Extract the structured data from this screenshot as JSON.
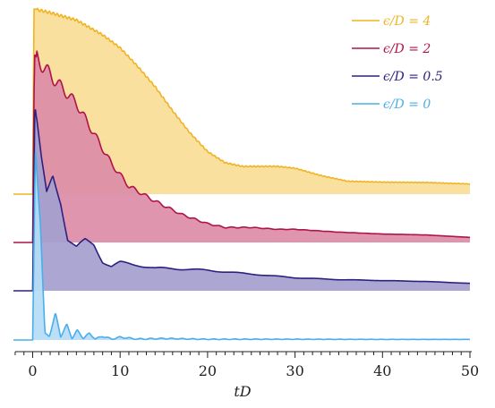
{
  "chart_data": {
    "type": "area",
    "xlabel": "tD",
    "xlim": [
      -2,
      50
    ],
    "x_ticks": [
      "0",
      "10",
      "20",
      "30",
      "40",
      "50"
    ],
    "legend_position": "top-right",
    "series": [
      {
        "key": "eps4",
        "name": "ϵ/D = 4",
        "color": "#f0b323",
        "fill": "#f9dd97",
        "baseline": 0,
        "peak": 1.0,
        "points": [
          [
            0,
            0
          ],
          [
            0.15,
            1.0
          ],
          [
            2,
            0.98
          ],
          [
            5,
            0.94
          ],
          [
            8,
            0.86
          ],
          [
            10,
            0.79
          ],
          [
            12,
            0.69
          ],
          [
            14,
            0.58
          ],
          [
            16,
            0.45
          ],
          [
            18,
            0.33
          ],
          [
            20,
            0.23
          ],
          [
            22,
            0.17
          ],
          [
            24,
            0.15
          ],
          [
            26,
            0.15
          ],
          [
            28,
            0.15
          ],
          [
            30,
            0.14
          ],
          [
            33,
            0.1
          ],
          [
            36,
            0.07
          ],
          [
            40,
            0.065
          ],
          [
            45,
            0.063
          ],
          [
            50,
            0.055
          ]
        ],
        "oscillation": {
          "amplitude": 0.008,
          "period": 0.45,
          "decay": 25
        }
      },
      {
        "key": "eps2",
        "name": "ϵ/D = 2",
        "color": "#b0124a",
        "fill": "#dc8ca6",
        "baseline": 0,
        "peak": 1.0,
        "points": [
          [
            0,
            0
          ],
          [
            0.2,
            1.0
          ],
          [
            1.5,
            0.92
          ],
          [
            3,
            0.84
          ],
          [
            5,
            0.74
          ],
          [
            7,
            0.58
          ],
          [
            9,
            0.42
          ],
          [
            11,
            0.3
          ],
          [
            14,
            0.22
          ],
          [
            17,
            0.15
          ],
          [
            20,
            0.1
          ],
          [
            22,
            0.08
          ],
          [
            25,
            0.08
          ],
          [
            28,
            0.07
          ],
          [
            30,
            0.07
          ],
          [
            35,
            0.055
          ],
          [
            40,
            0.045
          ],
          [
            45,
            0.04
          ],
          [
            50,
            0.027
          ]
        ],
        "oscillation": {
          "amplitude": 0.045,
          "period": 1.4,
          "decay": 8
        }
      },
      {
        "key": "eps05",
        "name": "ϵ/D = 0.5",
        "color": "#2d2080",
        "fill": "#a49fce",
        "baseline": 0,
        "peak": 1.0,
        "points": [
          [
            0,
            0
          ],
          [
            0.25,
            1.0
          ],
          [
            1,
            0.7
          ],
          [
            1.6,
            0.52
          ],
          [
            2.3,
            0.62
          ],
          [
            3.2,
            0.48
          ],
          [
            4,
            0.28
          ],
          [
            5,
            0.23
          ],
          [
            6,
            0.27
          ],
          [
            7,
            0.25
          ],
          [
            8,
            0.16
          ],
          [
            9,
            0.13
          ],
          [
            10,
            0.15
          ],
          [
            12,
            0.14
          ],
          [
            14,
            0.12
          ],
          [
            16,
            0.12
          ],
          [
            20,
            0.11
          ],
          [
            25,
            0.09
          ],
          [
            30,
            0.07
          ],
          [
            35,
            0.06
          ],
          [
            40,
            0.055
          ],
          [
            45,
            0.05
          ],
          [
            50,
            0.04
          ]
        ],
        "oscillation": {
          "amplitude": 0.02,
          "period": 4.5,
          "decay": 12
        }
      },
      {
        "key": "eps0",
        "name": "ϵ/D = 0",
        "color": "#4aaeea",
        "fill": "#b5dcf5",
        "baseline": 0,
        "peak": 1.0,
        "points": [
          [
            0,
            0
          ],
          [
            0.3,
            1.0
          ],
          [
            0.9,
            0.6
          ],
          [
            1.4,
            0.03
          ],
          [
            1.9,
            0.02
          ],
          [
            2.6,
            0.14
          ],
          [
            3.2,
            0.02
          ],
          [
            3.9,
            0.08
          ],
          [
            4.5,
            0.01
          ],
          [
            5.1,
            0.05
          ],
          [
            5.8,
            0.01
          ],
          [
            6.5,
            0.035
          ],
          [
            7.2,
            0.005
          ],
          [
            8,
            0.02
          ],
          [
            9,
            0.005
          ],
          [
            10,
            0.015
          ],
          [
            12,
            0.005
          ],
          [
            15,
            0.008
          ],
          [
            20,
            0.004
          ],
          [
            30,
            0.004
          ],
          [
            40,
            0.003
          ],
          [
            50,
            0.003
          ]
        ],
        "oscillation": {
          "amplitude": 0.006,
          "period": 1.2,
          "decay": 18
        }
      }
    ]
  }
}
